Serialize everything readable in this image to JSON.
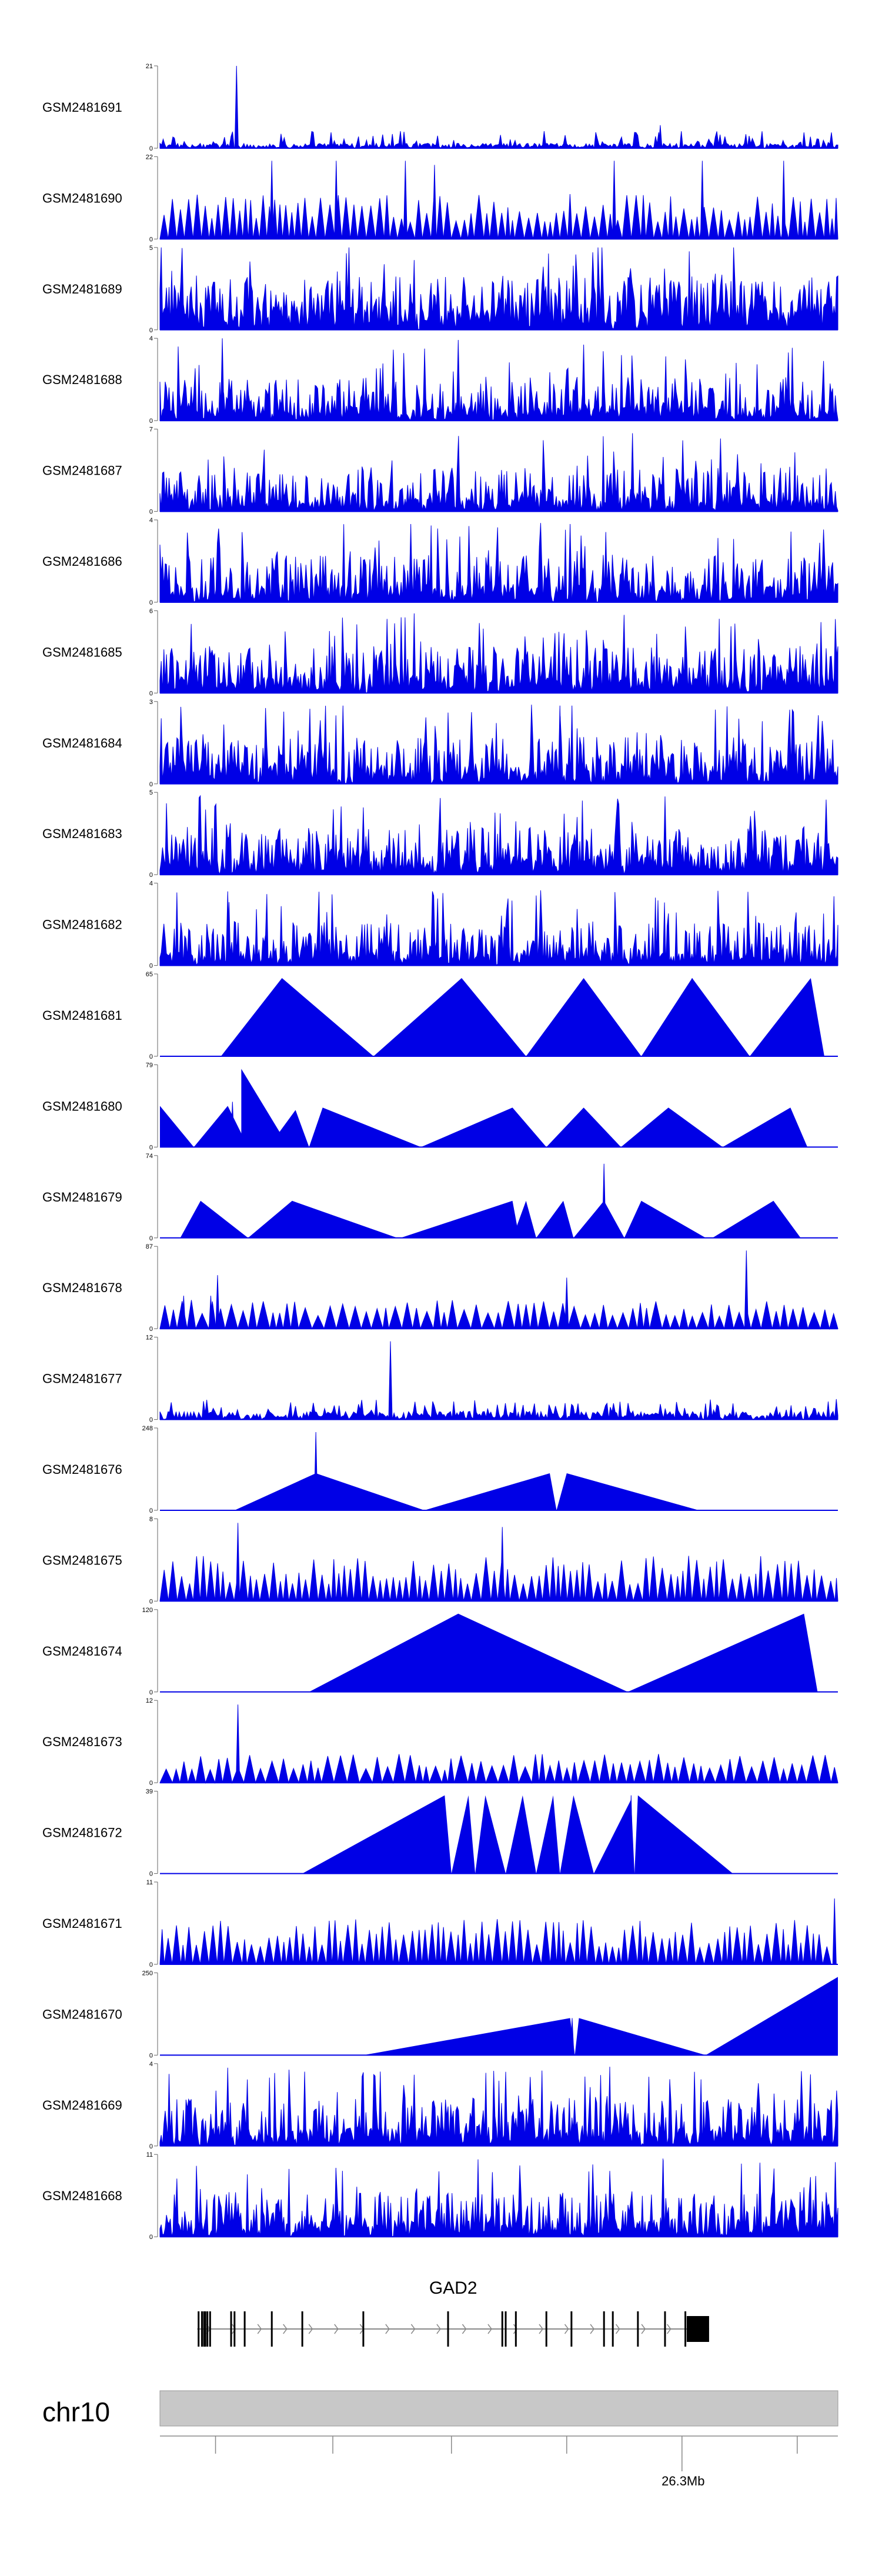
{
  "chart_data": {
    "type": "area",
    "title": "",
    "xlabel": "",
    "ylabel": "",
    "fill_color": "#0000e6",
    "track_count": 24,
    "tracks": [
      {
        "name": "GSM2481691",
        "ymin": "0",
        "ymax": "21",
        "ymax_value": 21,
        "style": "noise",
        "spikes": [
          [
            0.113,
            1.0
          ],
          [
            0.738,
            0.28
          ],
          [
            0.36,
            0.2
          ]
        ],
        "base": 0.06
      },
      {
        "name": "GSM2481690",
        "ymin": "0",
        "ymax": "22",
        "ymax_value": 22,
        "style": "teeth",
        "spikes": [
          [
            0.165,
            0.95
          ],
          [
            0.26,
            0.95
          ],
          [
            0.362,
            0.95
          ],
          [
            0.405,
            0.9
          ],
          [
            0.67,
            0.95
          ],
          [
            0.8,
            0.95
          ],
          [
            0.92,
            0.95
          ]
        ],
        "base": 0.0
      },
      {
        "name": "GSM2481689",
        "ymin": "0",
        "ymax": "5",
        "ymax_value": 5,
        "style": "dense",
        "spikes": [],
        "base": 0.3
      },
      {
        "name": "GSM2481688",
        "ymin": "0",
        "ymax": "4",
        "ymax_value": 4,
        "style": "dense",
        "spikes": [
          [
            0.092,
            1.0
          ],
          [
            0.44,
            0.98
          ]
        ],
        "base": 0.18
      },
      {
        "name": "GSM2481687",
        "ymin": "0",
        "ymax": "7",
        "ymax_value": 7,
        "style": "dense",
        "spikes": [
          [
            0.697,
            0.95
          ]
        ],
        "base": 0.18
      },
      {
        "name": "GSM2481686",
        "ymin": "0",
        "ymax": "4",
        "ymax_value": 4,
        "style": "dense",
        "spikes": [
          [
            0.37,
            0.95
          ],
          [
            0.605,
            0.95
          ]
        ],
        "base": 0.22
      },
      {
        "name": "GSM2481685",
        "ymin": "0",
        "ymax": "6",
        "ymax_value": 6,
        "style": "dense",
        "spikes": [
          [
            0.335,
            0.9
          ]
        ],
        "base": 0.22
      },
      {
        "name": "GSM2481684",
        "ymin": "0",
        "ymax": "3",
        "ymax_value": 3,
        "style": "dense",
        "spikes": [
          [
            0.27,
            0.95
          ],
          [
            0.59,
            0.95
          ]
        ],
        "base": 0.22
      },
      {
        "name": "GSM2481683",
        "ymin": "0",
        "ymax": "5",
        "ymax_value": 5,
        "style": "dense",
        "spikes": [
          [
            0.745,
            0.95
          ]
        ],
        "base": 0.22
      },
      {
        "name": "GSM2481682",
        "ymin": "0",
        "ymax": "4",
        "ymax_value": 4,
        "style": "dense",
        "spikes": [
          [
            0.1,
            0.9
          ],
          [
            0.555,
            0.85
          ]
        ],
        "base": 0.18
      },
      {
        "name": "GSM2481681",
        "ymin": "0",
        "ymax": "65",
        "ymax_value": 65,
        "style": "triangles",
        "triangles": [
          [
            0.09,
            0.18,
            0.315,
            0.95
          ],
          [
            0.315,
            0.445,
            0.54,
            0.95
          ],
          [
            0.54,
            0.625,
            0.71,
            0.95
          ],
          [
            0.71,
            0.785,
            0.87,
            0.95
          ],
          [
            0.87,
            0.96,
            0.98,
            0.95
          ]
        ],
        "spikes": [
          [
            0.785,
            0.95
          ]
        ],
        "base": 0.0
      },
      {
        "name": "GSM2481680",
        "ymin": "0",
        "ymax": "79",
        "ymax_value": 79,
        "style": "triangles",
        "triangles": [
          [
            0.0,
            0.0,
            0.05,
            0.5
          ],
          [
            0.05,
            0.1,
            0.13,
            0.5
          ],
          [
            0.12,
            0.12,
            0.19,
            0.95
          ],
          [
            0.16,
            0.2,
            0.22,
            0.45
          ],
          [
            0.22,
            0.24,
            0.385,
            0.48
          ],
          [
            0.385,
            0.52,
            0.57,
            0.48
          ],
          [
            0.57,
            0.625,
            0.68,
            0.48
          ],
          [
            0.68,
            0.75,
            0.83,
            0.48
          ],
          [
            0.83,
            0.93,
            0.955,
            0.48
          ]
        ],
        "spikes": [
          [
            0.107,
            0.55
          ]
        ],
        "base": 0.0
      },
      {
        "name": "GSM2481679",
        "ymin": "0",
        "ymax": "74",
        "ymax_value": 74,
        "style": "triangles",
        "triangles": [
          [
            0.03,
            0.06,
            0.13,
            0.45
          ],
          [
            0.13,
            0.195,
            0.35,
            0.45
          ],
          [
            0.355,
            0.52,
            0.53,
            0.45
          ],
          [
            0.52,
            0.54,
            0.555,
            0.45
          ],
          [
            0.555,
            0.595,
            0.61,
            0.45
          ],
          [
            0.61,
            0.655,
            0.685,
            0.45
          ],
          [
            0.685,
            0.71,
            0.805,
            0.45
          ],
          [
            0.815,
            0.905,
            0.945,
            0.45
          ]
        ],
        "spikes": [
          [
            0.655,
            0.9
          ]
        ],
        "base": 0.0
      },
      {
        "name": "GSM2481678",
        "ymin": "0",
        "ymax": "87",
        "ymax_value": 87,
        "style": "teethsmall",
        "spikes": [
          [
            0.085,
            0.65
          ],
          [
            0.6,
            0.62
          ],
          [
            0.865,
            0.95
          ],
          [
            0.075,
            0.4
          ],
          [
            0.035,
            0.4
          ]
        ],
        "base": 0.0
      },
      {
        "name": "GSM2481677",
        "ymin": "0",
        "ymax": "12",
        "ymax_value": 12,
        "style": "noise",
        "spikes": [
          [
            0.34,
            0.95
          ]
        ],
        "base": 0.1
      },
      {
        "name": "GSM2481676",
        "ymin": "0",
        "ymax": "248",
        "ymax_value": 248,
        "style": "triangles",
        "triangles": [
          [
            0.11,
            0.23,
            0.39,
            0.45
          ],
          [
            0.39,
            0.575,
            0.585,
            0.45
          ],
          [
            0.585,
            0.6,
            0.795,
            0.45
          ]
        ],
        "spikes": [
          [
            0.23,
            0.95
          ]
        ],
        "base": 0.0
      },
      {
        "name": "GSM2481675",
        "ymin": "0",
        "ymax": "8",
        "ymax_value": 8,
        "style": "teeth",
        "spikes": [
          [
            0.115,
            0.95
          ],
          [
            0.505,
            0.9
          ]
        ],
        "base": 0.0
      },
      {
        "name": "GSM2481674",
        "ymin": "0",
        "ymax": "120",
        "ymax_value": 120,
        "style": "triangles",
        "triangles": [
          [
            0.22,
            0.44,
            0.69,
            0.95
          ],
          [
            0.69,
            0.95,
            0.97,
            0.95
          ]
        ],
        "spikes": [],
        "base": 0.0
      },
      {
        "name": "GSM2481673",
        "ymin": "0",
        "ymax": "12",
        "ymax_value": 12,
        "style": "teethsmall2",
        "spikes": [
          [
            0.115,
            0.95
          ]
        ],
        "base": 0.0
      },
      {
        "name": "GSM2481672",
        "ymin": "0",
        "ymax": "39",
        "ymax_value": 39,
        "style": "triangles",
        "triangles": [
          [
            0.21,
            0.42,
            0.43,
            0.95
          ],
          [
            0.43,
            0.455,
            0.465,
            0.95
          ],
          [
            0.465,
            0.48,
            0.51,
            0.95
          ],
          [
            0.51,
            0.535,
            0.555,
            0.95
          ],
          [
            0.555,
            0.58,
            0.59,
            0.95
          ],
          [
            0.59,
            0.61,
            0.64,
            0.95
          ],
          [
            0.64,
            0.695,
            0.7,
            0.9
          ],
          [
            0.7,
            0.705,
            0.845,
            0.95
          ]
        ],
        "spikes": [
          [
            0.695,
            0.95
          ]
        ],
        "base": 0.0
      },
      {
        "name": "GSM2481671",
        "ymin": "0",
        "ymax": "11",
        "ymax_value": 11,
        "style": "teeth",
        "spikes": [
          [
            0.995,
            0.8
          ]
        ],
        "base": 0.0
      },
      {
        "name": "GSM2481670",
        "ymin": "0",
        "ymax": "250",
        "ymax_value": 250,
        "style": "triangles",
        "triangles": [
          [
            0.3,
            0.605,
            0.612,
            0.45
          ],
          [
            0.612,
            0.618,
            0.805,
            0.45
          ],
          [
            0.805,
            1.0,
            1.0,
            0.95
          ]
        ],
        "spikes": [
          [
            0.608,
            0.45
          ]
        ],
        "base": 0.0
      },
      {
        "name": "GSM2481669",
        "ymin": "0",
        "ymax": "4",
        "ymax_value": 4,
        "style": "dense",
        "spikes": [
          [
            0.1,
            0.95
          ],
          [
            0.51,
            0.9
          ]
        ],
        "base": 0.22
      },
      {
        "name": "GSM2481668",
        "ymin": "0",
        "ymax": "11",
        "ymax_value": 11,
        "style": "dense",
        "spikes": [
          [
            0.742,
            0.95
          ],
          [
            0.885,
            0.9
          ]
        ],
        "base": 0.2
      }
    ],
    "gene": {
      "name": "GAD2",
      "strand": "+",
      "start_frac": 0.055,
      "end_frac": 0.81,
      "exons": [
        0.057,
        0.062,
        0.065,
        0.067,
        0.07,
        0.074,
        0.105,
        0.11,
        0.125,
        0.165,
        0.21,
        0.3,
        0.425,
        0.505,
        0.51,
        0.525,
        0.57,
        0.607,
        0.655,
        0.668,
        0.705,
        0.745,
        0.775
      ],
      "utr_box": [
        0.777,
        0.81
      ],
      "arrow_count": 20
    },
    "chromosome": {
      "name": "chr10",
      "ticks": [
        0.082,
        0.255,
        0.43,
        0.6,
        0.77,
        0.94
      ],
      "labelled_tick": {
        "frac": 0.77,
        "label": "26.3Mb"
      }
    }
  }
}
